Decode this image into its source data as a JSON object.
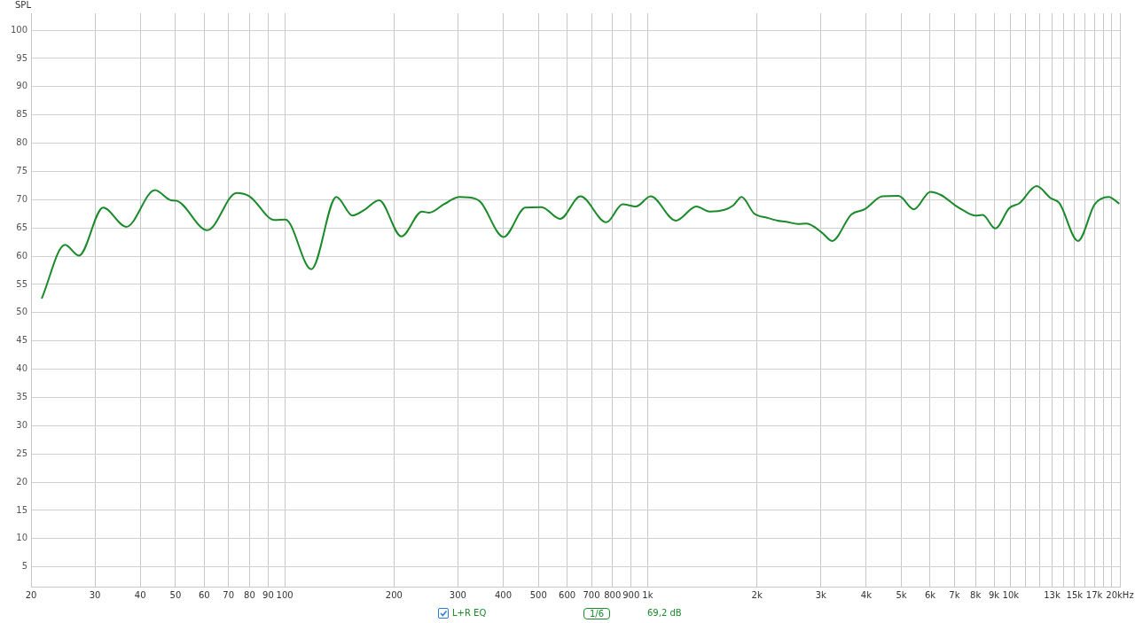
{
  "chart_data": {
    "type": "line",
    "ylabel": "SPL",
    "log": "x",
    "grid": true,
    "legend": "bottom",
    "marker": "none",
    "line_style": "solid",
    "xlim": [
      20,
      20000
    ],
    "ylim": [
      1.5,
      103
    ],
    "xticks": [
      20,
      30,
      40,
      50,
      60,
      70,
      80,
      90,
      100,
      200,
      300,
      400,
      500,
      600,
      700,
      800,
      900,
      {
        "value": 1000,
        "label": "1k"
      },
      {
        "value": 2000,
        "label": "2k"
      },
      {
        "value": 3000,
        "label": "3k"
      },
      {
        "value": 4000,
        "label": "4k"
      },
      {
        "value": 5000,
        "label": "5k"
      },
      {
        "value": 6000,
        "label": "6k"
      },
      {
        "value": 7000,
        "label": "7k"
      },
      {
        "value": 8000,
        "label": "8k"
      },
      {
        "value": 9000,
        "label": "9k"
      },
      {
        "value": 10000,
        "label": "10k"
      },
      {
        "value": 11000,
        "label": null
      },
      {
        "value": 12000,
        "label": null
      },
      {
        "value": 13000,
        "label": "13k"
      },
      {
        "value": 14000,
        "label": null
      },
      {
        "value": 15000,
        "label": "15k"
      },
      {
        "value": 16000,
        "label": null
      },
      {
        "value": 17000,
        "label": "17k"
      },
      {
        "value": 18000,
        "label": null
      },
      {
        "value": 19000,
        "label": null
      },
      {
        "value": 20000,
        "label": "20k"
      }
    ],
    "xlabel": "Hz",
    "yticks": [
      5,
      10,
      15,
      20,
      25,
      30,
      35,
      40,
      45,
      50,
      55,
      60,
      65,
      70,
      75,
      80,
      85,
      90,
      95,
      100
    ],
    "annotations": [
      "1/6",
      "69,2 dB"
    ],
    "series": [
      {
        "name": "L+R EQ",
        "color": "#1a8a2a",
        "x": [
          21.4,
          24.8,
          27.1,
          31.6,
          36.6,
          43.9,
          48.6,
          50.4,
          61.2,
          73.7,
          80,
          93.7,
          100.4,
          118.4,
          138.8,
          153.8,
          165.8,
          182,
          209.6,
          238.8,
          250,
          274.8,
          302.9,
          334.5,
          347.2,
          401,
          459.9,
          509.7,
          573.6,
          652.6,
          769.1,
          853,
          928,
          1019,
          1195,
          1362,
          1481,
          1627,
          1721,
          1814,
          1962,
          2134,
          2279,
          2411,
          2598,
          2737,
          3017,
          3222,
          3640,
          3960,
          4430,
          4910,
          5413,
          6010,
          6440,
          7070,
          7410,
          7990,
          8370,
          9075,
          9905,
          10580,
          11790,
          12880,
          13620,
          15330,
          17050,
          18620,
          19920
        ],
        "values": [
          52.5,
          62,
          60.1,
          68.6,
          65.2,
          71.7,
          69.9,
          69.8,
          64.6,
          71.2,
          70.6,
          66.4,
          66.5,
          57.7,
          70.5,
          67.2,
          68.2,
          69.9,
          63.5,
          67.9,
          67.7,
          69.2,
          70.5,
          70.2,
          69.5,
          63.4,
          68.6,
          68.7,
          66.6,
          70.6,
          66,
          69.2,
          68.8,
          70.6,
          66.3,
          68.8,
          67.9,
          68.2,
          69,
          70.5,
          67.6,
          66.8,
          66.3,
          66.1,
          65.7,
          65.8,
          64.2,
          62.7,
          67.4,
          68.3,
          70.6,
          70.7,
          68.3,
          71.4,
          70.8,
          68.9,
          68.1,
          67.2,
          67.3,
          64.9,
          68.5,
          69.4,
          72.4,
          70.3,
          69.4,
          62.7,
          69.2,
          70.5,
          69.3
        ]
      }
    ]
  }
}
